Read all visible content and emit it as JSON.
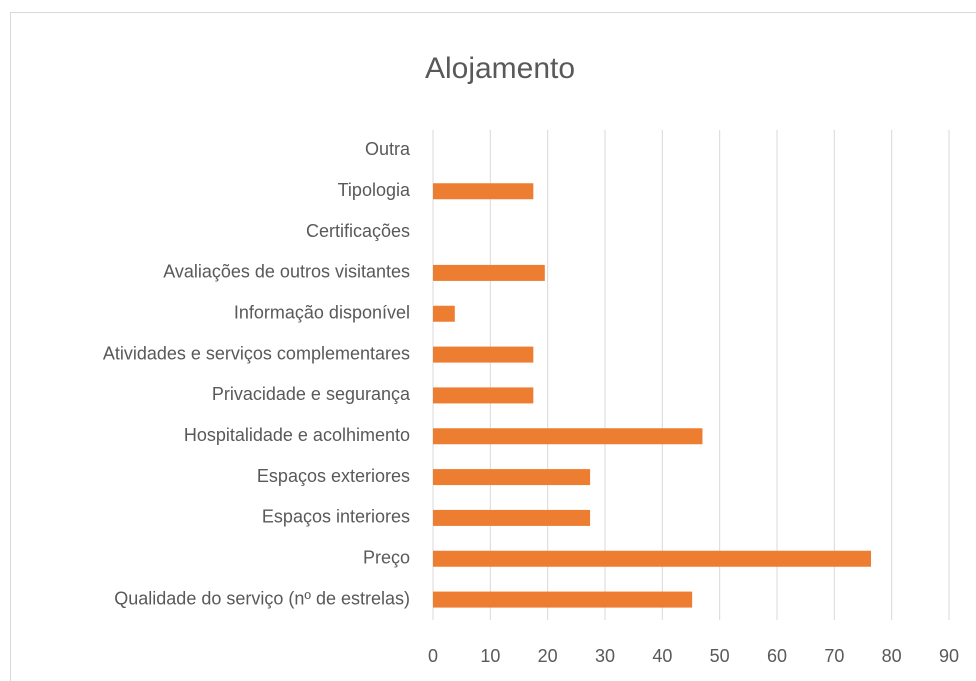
{
  "chart_data": {
    "type": "bar",
    "orientation": "horizontal",
    "title": "Alojamento",
    "categories": [
      "Outra",
      "Tipologia",
      "Certificações",
      "Avaliações de outros visitantes",
      "Informação disponível",
      "Atividades e serviços complementares",
      "Privacidade e segurança",
      "Hospitalidade e acolhimento",
      "Espaços exteriores",
      "Espaços interiores",
      "Preço",
      "Qualidade do serviço (nº de estrelas)"
    ],
    "values": [
      0,
      17.5,
      0,
      19.5,
      3.8,
      17.5,
      17.5,
      47,
      27.4,
      27.4,
      76.4,
      45.2
    ],
    "color": "#ed7d31",
    "xlim": [
      0,
      90
    ],
    "xticks": [
      0,
      10,
      20,
      30,
      40,
      50,
      60,
      70,
      80,
      90
    ],
    "grid": true
  }
}
